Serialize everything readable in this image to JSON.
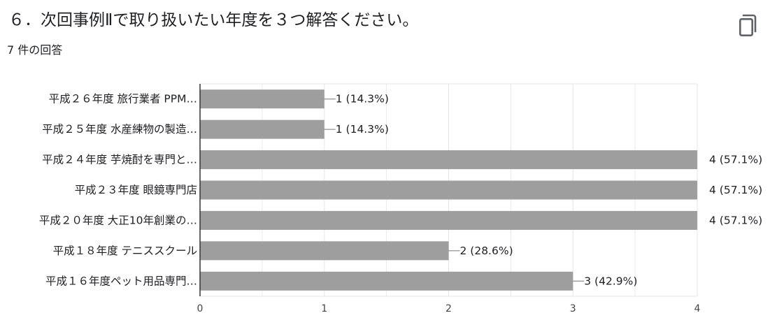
{
  "question": {
    "title": "６．次回事例Ⅱで取り扱いたい年度を３つ解答ください。",
    "response_count": "7 件の回答",
    "copy_icon": "copy-icon"
  },
  "chart_data": {
    "type": "bar",
    "orientation": "horizontal",
    "categories": [
      "平成２６年度 旅行業者 PPM…",
      "平成２５年度 水産練物の製造…",
      "平成２４年度 芋焼酎を専門と…",
      "平成２３年度 眼鏡専門店",
      "平成２０年度 大正10年創業の…",
      "平成１８年度 テニススクール",
      "平成１６年度ペット用品専門…"
    ],
    "values": [
      1,
      1,
      4,
      4,
      4,
      2,
      3
    ],
    "value_labels": [
      "1 (14.3%)",
      "1 (14.3%)",
      "4 (57.1%)",
      "4 (57.1%)",
      "4 (57.1%)",
      "2 (28.6%)",
      "3 (42.9%)"
    ],
    "xlim": [
      0,
      4
    ],
    "xticks": [
      "0",
      "1",
      "2",
      "3",
      "4"
    ],
    "grid": true,
    "colors": {
      "bar": "#9e9e9e",
      "grid": "#e6e6e6",
      "axis": "#333333"
    }
  }
}
